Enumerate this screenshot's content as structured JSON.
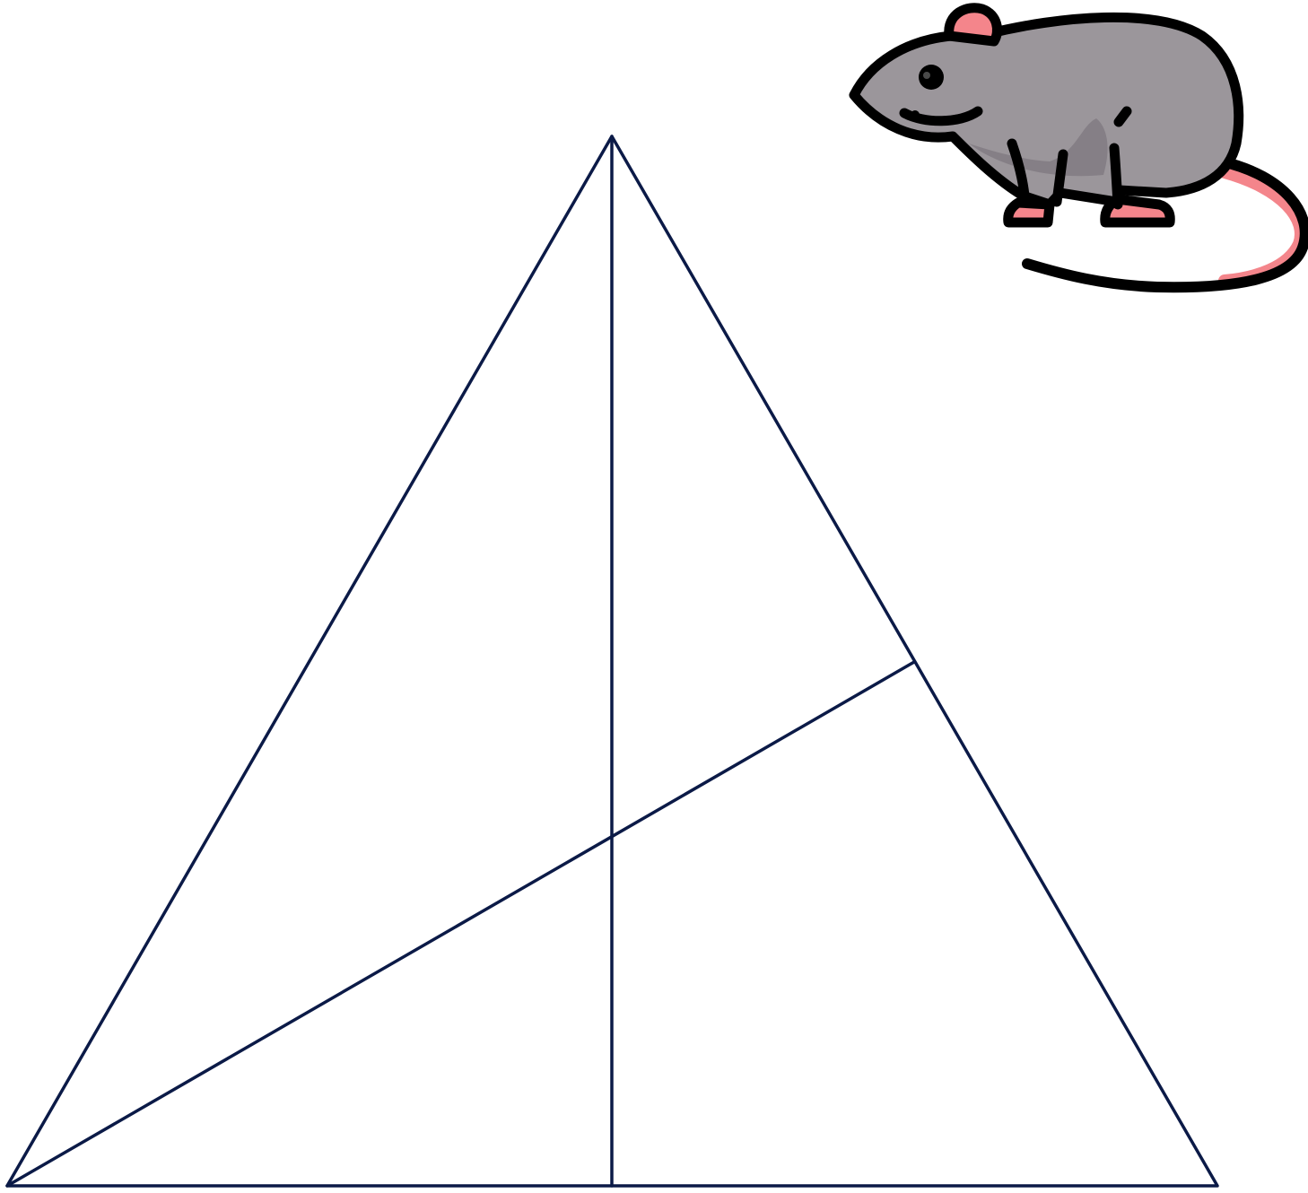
{
  "colors": {
    "line": "#0b1a47",
    "mouse_body": "#9b969b",
    "mouse_shade": "#857f86",
    "mouse_pink": "#f4858b",
    "mouse_outline": "#000000",
    "background": "#ffffff"
  },
  "diagram": {
    "shape": "triangle-with-median-and-cevian",
    "icon": "mouse-icon"
  }
}
